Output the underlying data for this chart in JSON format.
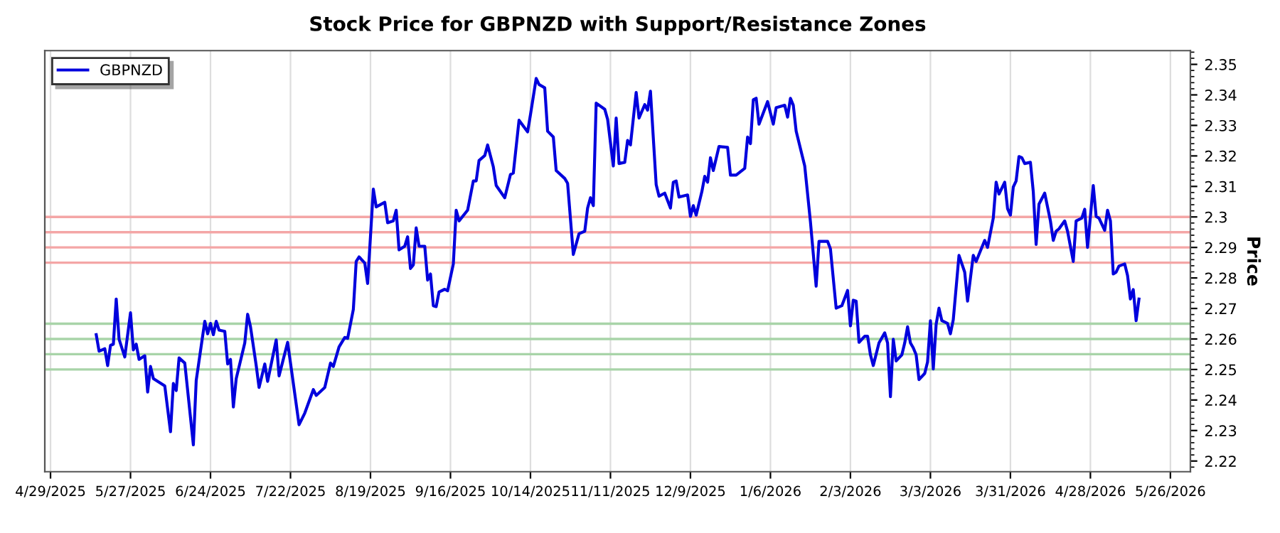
{
  "chart_data": {
    "type": "line",
    "title": "Stock Price for GBPNZD with Support/Resistance Zones",
    "ylabel": "Price",
    "x": [
      "2025-05-15",
      "2025-05-16",
      "2025-05-18",
      "2025-05-19",
      "2025-05-20",
      "2025-05-21",
      "2025-05-22",
      "2025-05-23",
      "2025-05-25",
      "2025-05-27",
      "2025-05-28",
      "2025-05-29",
      "2025-05-30",
      "2025-06-01",
      "2025-06-02",
      "2025-06-03",
      "2025-06-04",
      "2025-06-08",
      "2025-06-10",
      "2025-06-11",
      "2025-06-12",
      "2025-06-13",
      "2025-06-15",
      "2025-06-18",
      "2025-06-19",
      "2025-06-22",
      "2025-06-23",
      "2025-06-24",
      "2025-06-25",
      "2025-06-26",
      "2025-06-27",
      "2025-06-29",
      "2025-06-30",
      "2025-07-01",
      "2025-07-02",
      "2025-07-03",
      "2025-07-06",
      "2025-07-07",
      "2025-07-08",
      "2025-07-10",
      "2025-07-11",
      "2025-07-13",
      "2025-07-14",
      "2025-07-17",
      "2025-07-18",
      "2025-07-21",
      "2025-07-25",
      "2025-07-27",
      "2025-07-30",
      "2025-07-31",
      "2025-08-03",
      "2025-08-05",
      "2025-08-06",
      "2025-08-08",
      "2025-08-10",
      "2025-08-11",
      "2025-08-13",
      "2025-08-14",
      "2025-08-15",
      "2025-08-17",
      "2025-08-18",
      "2025-08-20",
      "2025-08-21",
      "2025-08-24",
      "2025-08-25",
      "2025-08-27",
      "2025-08-28",
      "2025-08-29",
      "2025-08-31",
      "2025-09-01",
      "2025-09-02",
      "2025-09-03",
      "2025-09-04",
      "2025-09-05",
      "2025-09-07",
      "2025-09-08",
      "2025-09-09",
      "2025-09-10",
      "2025-09-11",
      "2025-09-12",
      "2025-09-14",
      "2025-09-15",
      "2025-09-17",
      "2025-09-18",
      "2025-09-19",
      "2025-09-22",
      "2025-09-24",
      "2025-09-25",
      "2025-09-26",
      "2025-09-28",
      "2025-09-29",
      "2025-10-01",
      "2025-10-02",
      "2025-10-05",
      "2025-10-07",
      "2025-10-08",
      "2025-10-10",
      "2025-10-13",
      "2025-10-14",
      "2025-10-16",
      "2025-10-17",
      "2025-10-19",
      "2025-10-20",
      "2025-10-22",
      "2025-10-23",
      "2025-10-26",
      "2025-10-27",
      "2025-10-29",
      "2025-10-31",
      "2025-11-02",
      "2025-11-03",
      "2025-11-04",
      "2025-11-05",
      "2025-11-06",
      "2025-11-09",
      "2025-11-10",
      "2025-11-12",
      "2025-11-13",
      "2025-11-14",
      "2025-11-16",
      "2025-11-17",
      "2025-11-18",
      "2025-11-20",
      "2025-11-21",
      "2025-11-23",
      "2025-11-24",
      "2025-11-25",
      "2025-11-26",
      "2025-11-27",
      "2025-11-28",
      "2025-11-30",
      "2025-12-02",
      "2025-12-03",
      "2025-12-04",
      "2025-12-05",
      "2025-12-08",
      "2025-12-09",
      "2025-12-10",
      "2025-12-11",
      "2025-12-13",
      "2025-12-14",
      "2025-12-15",
      "2025-12-16",
      "2025-12-17",
      "2025-12-19",
      "2025-12-22",
      "2025-12-23",
      "2025-12-25",
      "2025-12-28",
      "2025-12-29",
      "2025-12-30",
      "2025-12-31",
      "2026-01-01",
      "2026-01-02",
      "2026-01-05",
      "2026-01-07",
      "2026-01-08",
      "2026-01-11",
      "2026-01-12",
      "2026-01-13",
      "2026-01-14",
      "2026-01-15",
      "2026-01-18",
      "2026-01-20",
      "2026-01-22",
      "2026-01-23",
      "2026-01-26",
      "2026-01-27",
      "2026-01-29",
      "2026-01-31",
      "2026-02-02",
      "2026-02-03",
      "2026-02-04",
      "2026-02-05",
      "2026-02-06",
      "2026-02-08",
      "2026-02-09",
      "2026-02-10",
      "2026-02-11",
      "2026-02-13",
      "2026-02-15",
      "2026-02-16",
      "2026-02-17",
      "2026-02-18",
      "2026-02-19",
      "2026-02-21",
      "2026-02-22",
      "2026-02-23",
      "2026-02-24",
      "2026-02-25",
      "2026-02-26",
      "2026-02-27",
      "2026-03-01",
      "2026-03-02",
      "2026-03-03",
      "2026-03-04",
      "2026-03-05",
      "2026-03-06",
      "2026-03-07",
      "2026-03-09",
      "2026-03-10",
      "2026-03-11",
      "2026-03-13",
      "2026-03-15",
      "2026-03-16",
      "2026-03-18",
      "2026-03-19",
      "2026-03-20",
      "2026-03-22",
      "2026-03-23",
      "2026-03-25",
      "2026-03-26",
      "2026-03-27",
      "2026-03-29",
      "2026-03-30",
      "2026-03-31",
      "2026-04-01",
      "2026-04-02",
      "2026-04-03",
      "2026-04-04",
      "2026-04-05",
      "2026-04-07",
      "2026-04-08",
      "2026-04-09",
      "2026-04-10",
      "2026-04-12",
      "2026-04-14",
      "2026-04-15",
      "2026-04-16",
      "2026-04-17",
      "2026-04-19",
      "2026-04-20",
      "2026-04-22",
      "2026-04-23",
      "2026-04-25",
      "2026-04-26",
      "2026-04-27",
      "2026-04-29",
      "2026-04-30",
      "2026-05-01",
      "2026-05-03",
      "2026-05-04",
      "2026-05-05",
      "2026-05-06",
      "2026-05-07",
      "2026-05-08",
      "2026-05-10",
      "2026-05-11",
      "2026-05-12",
      "2026-05-13",
      "2026-05-14",
      "2026-05-15"
    ],
    "series": [
      {
        "name": "GBPNZD",
        "color": "#0000dd",
        "values": [
          2.2614,
          2.256,
          2.2568,
          2.2513,
          2.2579,
          2.2583,
          2.2731,
          2.2599,
          2.2541,
          2.2686,
          2.2564,
          2.2583,
          2.2533,
          2.2545,
          2.2426,
          2.251,
          2.247,
          2.2446,
          2.2296,
          2.2454,
          2.2431,
          2.2538,
          2.2521,
          2.2253,
          2.2464,
          2.2658,
          2.2617,
          2.2651,
          2.2614,
          2.2658,
          2.2629,
          2.2625,
          2.2518,
          2.2533,
          2.2377,
          2.247,
          2.2587,
          2.2681,
          2.264,
          2.2513,
          2.2441,
          2.2518,
          2.2461,
          2.2597,
          2.2479,
          2.2589,
          2.2319,
          2.2357,
          2.2434,
          2.2415,
          2.2441,
          2.2521,
          2.251,
          2.2574,
          2.2605,
          2.2602,
          2.2697,
          2.2854,
          2.2869,
          2.2849,
          2.2782,
          2.3091,
          2.3033,
          2.3048,
          2.2981,
          2.2987,
          2.3022,
          2.2892,
          2.2904,
          2.2935,
          2.2831,
          2.2843,
          2.2964,
          2.2904,
          2.2904,
          2.2793,
          2.2813,
          2.2709,
          2.2706,
          2.2754,
          2.2763,
          2.2758,
          2.2846,
          2.3022,
          2.2987,
          2.3022,
          2.3118,
          2.3118,
          2.3185,
          2.3201,
          2.3236,
          2.3164,
          2.3103,
          2.3063,
          2.3139,
          2.3144,
          2.3317,
          2.3279,
          2.3335,
          2.3454,
          2.3434,
          2.3423,
          2.3281,
          2.3262,
          2.3152,
          2.3126,
          2.311,
          2.2877,
          2.2945,
          2.2953,
          2.3029,
          2.3063,
          2.3037,
          2.3373,
          2.3353,
          2.332,
          2.3167,
          2.3324,
          2.3175,
          2.3179,
          2.3251,
          2.3236,
          2.3408,
          2.3324,
          2.3368,
          2.335,
          2.3412,
          2.3259,
          2.3106,
          2.3068,
          2.3078,
          2.3029,
          2.3114,
          2.3118,
          2.3065,
          2.3072,
          2.3002,
          2.3037,
          2.3006,
          2.3083,
          2.3133,
          2.3114,
          2.3194,
          2.3152,
          2.3231,
          2.3228,
          2.3137,
          2.3137,
          2.3159,
          2.3262,
          2.324,
          2.3384,
          2.3389,
          2.3304,
          2.3378,
          2.3304,
          2.3358,
          2.3366,
          2.3327,
          2.3389,
          2.3366,
          2.3281,
          2.3167,
          2.2984,
          2.2773,
          2.292,
          2.292,
          2.2895,
          2.2701,
          2.2709,
          2.2759,
          2.2643,
          2.2727,
          2.2724,
          2.2589,
          2.2609,
          2.2609,
          2.2548,
          2.2513,
          2.2587,
          2.262,
          2.2587,
          2.2411,
          2.2599,
          2.2528,
          2.2548,
          2.2587,
          2.264,
          2.2587,
          2.2571,
          2.2548,
          2.2467,
          2.2487,
          2.2525,
          2.266,
          2.2502,
          2.2648,
          2.2701,
          2.266,
          2.2651,
          2.2617,
          2.2663,
          2.2874,
          2.2819,
          2.2724,
          2.2874,
          2.2854,
          2.2877,
          2.2923,
          2.29,
          2.2996,
          2.3114,
          2.3075,
          2.3114,
          2.3027,
          2.3006,
          2.3098,
          2.3118,
          2.3198,
          2.3194,
          2.3175,
          2.3179,
          2.3083,
          2.291,
          2.3042,
          2.3078,
          2.2987,
          2.2923,
          2.2953,
          2.2961,
          2.2987,
          2.2953,
          2.2854,
          2.2987,
          2.2996,
          2.3025,
          2.29,
          2.3103,
          2.3002,
          2.2996,
          2.2956,
          2.3022,
          2.2987,
          2.2813,
          2.2819,
          2.2839,
          2.2846,
          2.2808,
          2.2731,
          2.2762,
          2.266,
          2.2731
        ]
      }
    ],
    "xlim": [
      "2025-04-27",
      "2026-06-02"
    ],
    "xticks": [
      {
        "value": "2025-04-29",
        "label": "4/29/2025"
      },
      {
        "value": "2025-05-27",
        "label": "5/27/2025"
      },
      {
        "value": "2025-06-24",
        "label": "6/24/2025"
      },
      {
        "value": "2025-07-22",
        "label": "7/22/2025"
      },
      {
        "value": "2025-08-19",
        "label": "8/19/2025"
      },
      {
        "value": "2025-09-16",
        "label": "9/16/2025"
      },
      {
        "value": "2025-10-14",
        "label": "10/14/2025"
      },
      {
        "value": "2025-11-11",
        "label": "11/11/2025"
      },
      {
        "value": "2025-12-09",
        "label": "12/9/2025"
      },
      {
        "value": "2026-01-06",
        "label": "1/6/2026"
      },
      {
        "value": "2026-02-03",
        "label": "2/3/2026"
      },
      {
        "value": "2026-03-03",
        "label": "3/3/2026"
      },
      {
        "value": "2026-03-31",
        "label": "3/31/2026"
      },
      {
        "value": "2026-04-28",
        "label": "4/28/2026"
      },
      {
        "value": "2026-05-26",
        "label": "5/26/2026"
      }
    ],
    "ylim": [
      2.2165,
      2.3545
    ],
    "yticks": [
      2.22,
      2.23,
      2.24,
      2.25,
      2.26,
      2.27,
      2.28,
      2.29,
      2.3,
      2.31,
      2.32,
      2.33,
      2.34,
      2.35
    ],
    "ref_lines": [
      {
        "axis": "y",
        "value": 2.3,
        "color": "#f4a6a6"
      },
      {
        "axis": "y",
        "value": 2.295,
        "color": "#f4a6a6"
      },
      {
        "axis": "y",
        "value": 2.29,
        "color": "#f4a6a6"
      },
      {
        "axis": "y",
        "value": 2.285,
        "color": "#f4a6a6"
      },
      {
        "axis": "y",
        "value": 2.265,
        "color": "#a8d4a8"
      },
      {
        "axis": "y",
        "value": 2.26,
        "color": "#a8d4a8"
      },
      {
        "axis": "y",
        "value": 2.255,
        "color": "#a8d4a8"
      },
      {
        "axis": "y",
        "value": 2.25,
        "color": "#a8d4a8"
      }
    ],
    "grid": "x",
    "legend": "top left",
    "marker": "none",
    "line_style": "solid"
  }
}
